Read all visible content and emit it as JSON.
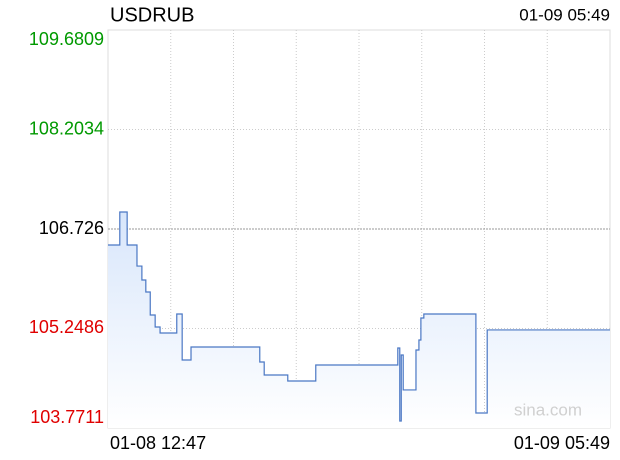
{
  "chart_data": {
    "type": "line",
    "step": true,
    "title": "USDRUB",
    "timestamp": "01-09 05:49",
    "watermark": "sina.com",
    "x": [
      0,
      24,
      39,
      59,
      69,
      77,
      86,
      96,
      106,
      140,
      151,
      169,
      309,
      318,
      366,
      423,
      590,
      594,
      597,
      601,
      627,
      633,
      637,
      643,
      749,
      772,
      1022
    ],
    "series": [
      {
        "name": "USDRUB",
        "color": "#4a77c4",
        "values": [
          106.488,
          106.978,
          106.488,
          106.176,
          105.969,
          105.79,
          105.449,
          105.271,
          105.182,
          105.464,
          104.781,
          104.974,
          104.751,
          104.558,
          104.469,
          104.707,
          104.959,
          103.875,
          104.855,
          104.336,
          104.929,
          105.078,
          105.404,
          105.464,
          103.994,
          105.227,
          105.227
        ]
      }
    ],
    "xlim": [
      0,
      1022
    ],
    "xticks": [
      {
        "value": 0,
        "label": "01-08 12:47"
      },
      {
        "value": 1022,
        "label": "01-09 05:49"
      }
    ],
    "ylim": [
      103.7711,
      109.6809
    ],
    "yticks": [
      109.6809,
      108.2034,
      106.726,
      {
        "value": 105.2486,
        "label": "105.2486"
      },
      103.7711
    ],
    "reference_line": 106.726,
    "up_color": "#009900",
    "down_color": "#e00000",
    "grid": true
  }
}
